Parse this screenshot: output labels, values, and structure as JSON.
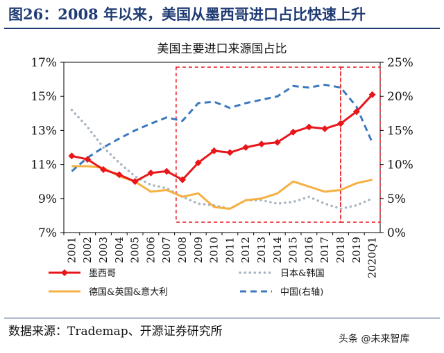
{
  "figure": {
    "title": "图26：2008 年以来，美国从墨西哥进口占比快速上升",
    "source": "数据来源：Trademap、开源证券研究所",
    "watermark": "头条 @未来智库"
  },
  "colors": {
    "brand_blue": "#1f3b73",
    "mexico": "#e8161b",
    "japan_korea": "#a8b4c0",
    "germany_uk_italy": "#f5b041",
    "china": "#3c78c0",
    "highlight_box": "#e8161b"
  },
  "chart_data": {
    "type": "line",
    "title": "美国主要进口来源国占比",
    "categories": [
      "2001",
      "2002",
      "2003",
      "2004",
      "2005",
      "2006",
      "2007",
      "2008",
      "2009",
      "2010",
      "2011",
      "2012",
      "2013",
      "2014",
      "2015",
      "2016",
      "2017",
      "2018",
      "2019",
      "2020Q1"
    ],
    "left_axis": {
      "ylim": [
        7,
        17
      ],
      "ticks": [
        "7%",
        "9%",
        "11%",
        "13%",
        "15%",
        "17%"
      ]
    },
    "right_axis": {
      "ylim": [
        0,
        25
      ],
      "ticks": [
        "0%",
        "5%",
        "10%",
        "15%",
        "20%",
        "25%"
      ]
    },
    "series": [
      {
        "name": "墨西哥",
        "axis": "left",
        "style": "solid-diamond",
        "values": [
          11.5,
          11.3,
          10.7,
          10.4,
          10.0,
          10.5,
          10.6,
          10.1,
          11.1,
          11.8,
          11.7,
          12.0,
          12.2,
          12.3,
          12.9,
          13.2,
          13.1,
          13.4,
          14.1,
          15.1
        ]
      },
      {
        "name": "日本&韩国",
        "axis": "left",
        "style": "dotted",
        "values": [
          14.2,
          13.2,
          12.0,
          11.1,
          10.3,
          9.8,
          9.6,
          9.1,
          8.7,
          8.6,
          8.4,
          8.9,
          8.9,
          8.7,
          8.8,
          9.1,
          8.7,
          8.4,
          8.6,
          9.0
        ]
      },
      {
        "name": "德国&英国&意大利",
        "axis": "left",
        "style": "solid",
        "values": [
          10.9,
          10.9,
          10.8,
          10.3,
          10.0,
          9.4,
          9.5,
          9.1,
          9.3,
          8.5,
          8.4,
          8.9,
          9.0,
          9.3,
          10.0,
          9.7,
          9.4,
          9.5,
          9.9,
          10.1
        ]
      },
      {
        "name": "中国(右轴)",
        "axis": "right",
        "style": "dashed",
        "values": [
          9.0,
          11.0,
          12.5,
          13.8,
          15.0,
          16.0,
          16.9,
          16.4,
          19.0,
          19.2,
          18.3,
          19.0,
          19.5,
          20.0,
          21.5,
          21.3,
          21.7,
          21.3,
          18.5,
          13.2
        ]
      }
    ],
    "highlight_boxes": [
      {
        "from": "2008",
        "to": "2018"
      },
      {
        "from": "2018",
        "to": "2020Q1"
      }
    ],
    "legend_position": "bottom"
  }
}
